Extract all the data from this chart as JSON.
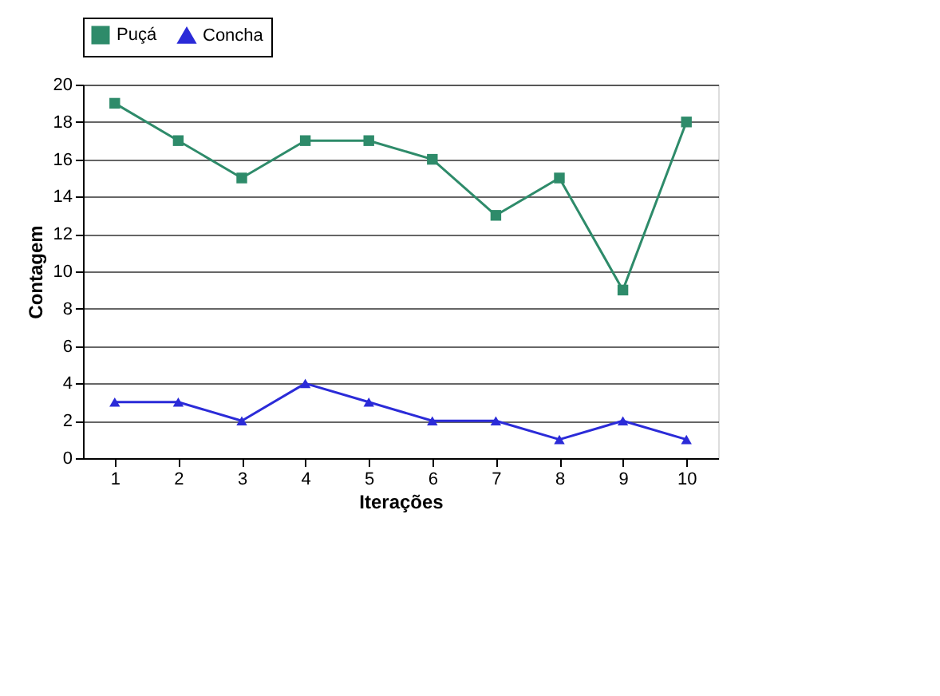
{
  "chart_data": {
    "type": "line",
    "xlabel": "Iterações",
    "ylabel": "Contagem",
    "categories": [
      "1",
      "2",
      "3",
      "4",
      "5",
      "6",
      "7",
      "8",
      "9",
      "10"
    ],
    "series": [
      {
        "name": "Puçá",
        "color": "#2e8b6a",
        "marker": "square",
        "values": [
          19,
          17,
          15,
          17,
          17,
          16,
          13,
          15,
          9,
          18
        ]
      },
      {
        "name": "Concha",
        "color": "#2b2bd8",
        "marker": "triangle",
        "values": [
          3,
          3,
          2,
          4,
          3,
          2,
          2,
          1,
          2,
          1
        ]
      }
    ],
    "ylim": [
      0,
      20
    ],
    "yticks": [
      0,
      2,
      4,
      6,
      8,
      10,
      12,
      14,
      16,
      18,
      20
    ],
    "grid": "y",
    "legend": "top",
    "line_style": "solid"
  }
}
